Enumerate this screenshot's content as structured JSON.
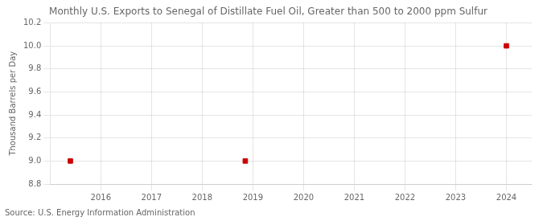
{
  "chart_data": {
    "type": "scatter",
    "title": "Monthly U.S. Exports to Senegal of Distillate Fuel Oil, Greater than 500 to 2000 ppm Sulfur",
    "y_label": "Thousand Barrels per Day",
    "annotations": [
      "Source: U.S. Energy Information Administration"
    ],
    "x": [
      2015.4,
      2018.85,
      2024.0
    ],
    "values": [
      9.0,
      9.0,
      10.0
    ],
    "color": "#cc0000",
    "marker": "square",
    "xlim": [
      2015.0,
      2024.5
    ],
    "xticks": [
      2016,
      2017,
      2018,
      2019,
      2020,
      2021,
      2022,
      2023,
      2024
    ],
    "ylim": [
      8.8,
      10.2
    ],
    "yticks": [
      8.8,
      {
        "value": 9.0,
        "label": "9.0"
      },
      9.2,
      9.4,
      9.6,
      9.8,
      {
        "value": 10.0,
        "label": "10.0"
      },
      10.2
    ],
    "grid": true
  }
}
